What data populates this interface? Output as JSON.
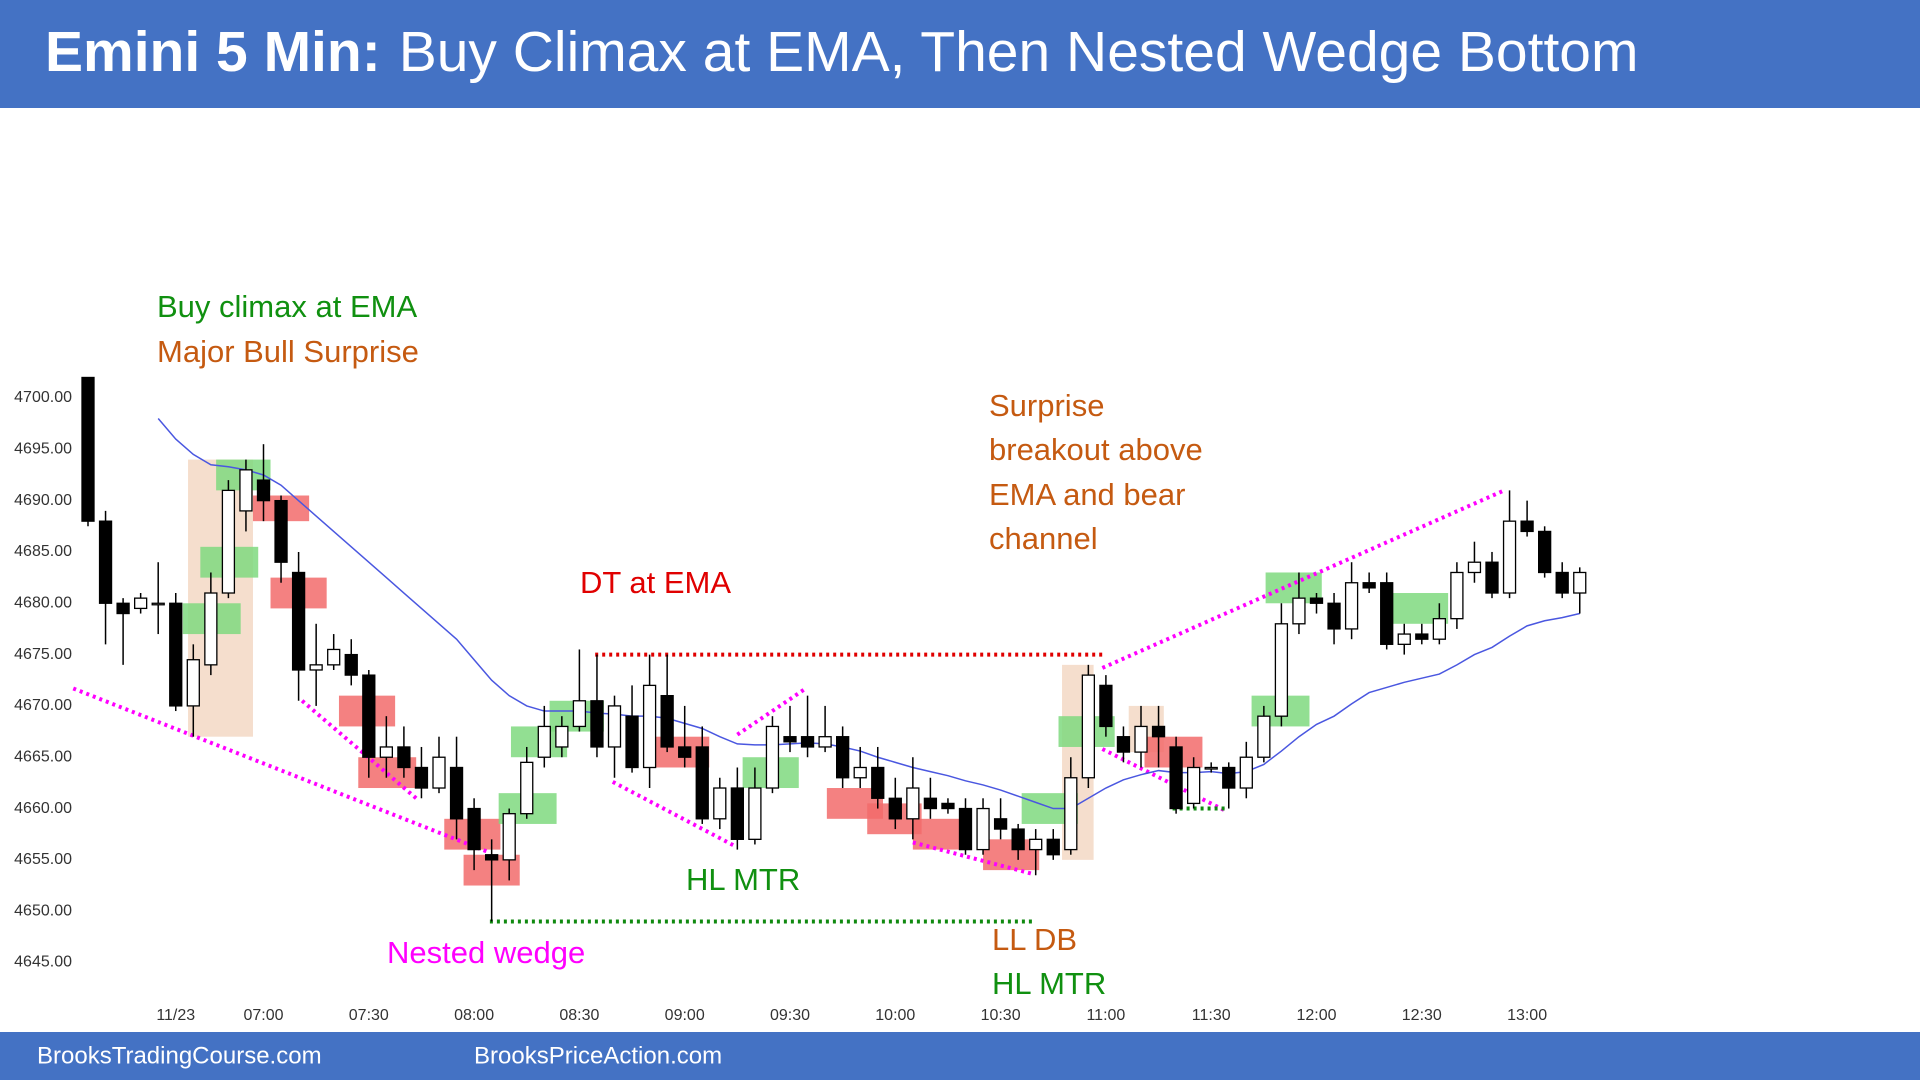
{
  "header": {
    "title_lead": "Emini 5 Min:",
    "title": "Buy Climax at EMA, Then Nested Wedge Bottom"
  },
  "footer": [
    "BrooksTradingCourse.com",
    "BrooksPriceAction.com"
  ],
  "chart_data": {
    "type": "candlestick",
    "categories": [
      null,
      null,
      null,
      null,
      null,
      "11/23",
      null,
      null,
      null,
      null,
      "07:00",
      null,
      null,
      null,
      null,
      null,
      "07:30",
      null,
      null,
      null,
      null,
      null,
      "08:00",
      null,
      null,
      null,
      null,
      null,
      "08:30",
      null,
      null,
      null,
      null,
      null,
      "09:00",
      null,
      null,
      null,
      null,
      null,
      "09:30",
      null,
      null,
      null,
      null,
      null,
      "10:00",
      null,
      null,
      null,
      null,
      null,
      "10:30",
      null,
      null,
      null,
      null,
      null,
      "11:00",
      null,
      null,
      null,
      null,
      null,
      "11:30",
      null,
      null,
      null,
      null,
      null,
      "12:00",
      null,
      null,
      null,
      null,
      null,
      "12:30",
      null,
      null,
      null,
      null,
      null,
      "13:00",
      null,
      null,
      null
    ],
    "open": [
      4702,
      4688,
      4680,
      4679.5,
      4680,
      4680,
      4670,
      4674,
      4681,
      4689,
      4692,
      4690,
      4683,
      4673.5,
      4674,
      4675,
      4673,
      4665,
      4666,
      4664,
      4662,
      4664,
      4660,
      4655.5,
      4655,
      4659.5,
      4665,
      4666,
      4668,
      4670.5,
      4666,
      4669,
      4664,
      4671,
      4666,
      4666,
      4659,
      4662,
      4657,
      4662,
      4667,
      4667,
      4666,
      4667,
      4663,
      4664,
      4661,
      4659,
      4661,
      4660.5,
      4660,
      4656,
      4659,
      4658,
      4656,
      4657,
      4656,
      4663,
      4672,
      4667,
      4665.5,
      4668,
      4666,
      4660.5,
      4664,
      4664,
      4662,
      4665,
      4669,
      4678,
      4680.5,
      4680,
      4677.5,
      4682,
      4682,
      4676,
      4677,
      4676.5,
      4678.5,
      4683,
      4684,
      4681,
      4688,
      4687,
      4683,
      4681
    ],
    "high": [
      4702,
      4689,
      4680.5,
      4681,
      4684,
      4681,
      4676,
      4683,
      4692,
      4694,
      4695.5,
      4690.5,
      4685,
      4678,
      4677,
      4676.5,
      4673.5,
      4669,
      4668,
      4666,
      4667,
      4667,
      4661,
      4657,
      4660,
      4666,
      4670,
      4669,
      4675.5,
      4675,
      4671,
      4672,
      4675,
      4675,
      4670,
      4668,
      4663,
      4664,
      4664,
      4669,
      4670,
      4671,
      4670,
      4668,
      4666,
      4666,
      4663,
      4665,
      4663,
      4661,
      4661,
      4661,
      4661,
      4658.5,
      4658,
      4658,
      4665,
      4674,
      4673,
      4668,
      4670,
      4670,
      4667,
      4665,
      4664.5,
      4664.5,
      4666.5,
      4670,
      4680,
      4683,
      4681,
      4681,
      4684,
      4683,
      4683,
      4678,
      4678,
      4680,
      4684,
      4686,
      4685,
      4691,
      4690,
      4687.5,
      4684,
      4683.5
    ],
    "low": [
      4687.5,
      4676,
      4674,
      4679,
      4677,
      4669.5,
      4667,
      4673,
      4680.5,
      4687,
      4688,
      4682,
      4670.5,
      4670,
      4673.5,
      4672,
      4663,
      4663,
      4663,
      4661,
      4661.5,
      4657,
      4654,
      4649,
      4653,
      4659,
      4664,
      4665,
      4667.5,
      4665,
      4663,
      4663.5,
      4662,
      4665.5,
      4664,
      4658.5,
      4658,
      4656,
      4656.5,
      4661.5,
      4665.5,
      4665,
      4665.5,
      4662,
      4662,
      4660,
      4658,
      4657,
      4659,
      4659.5,
      4655.5,
      4655.5,
      4657,
      4655,
      4653.5,
      4655,
      4655.5,
      4662,
      4667,
      4664.5,
      4664,
      4664,
      4659.5,
      4660,
      4663.5,
      4660,
      4661,
      4664.5,
      4668,
      4677,
      4679,
      4676,
      4676.5,
      4681,
      4675.5,
      4675,
      4676,
      4676,
      4677.5,
      4682,
      4680.5,
      4680.5,
      4686.5,
      4682.5,
      4680.5,
      4679
    ],
    "close": [
      4688,
      4680,
      4679,
      4680.5,
      4680,
      4670,
      4674.5,
      4681,
      4691,
      4693,
      4690,
      4684,
      4673.5,
      4674,
      4675.5,
      4673,
      4665,
      4666,
      4664,
      4662,
      4665,
      4659,
      4656,
      4655,
      4659.5,
      4664.5,
      4668,
      4668,
      4670.5,
      4666,
      4670,
      4664,
      4672,
      4666,
      4665,
      4659,
      4662,
      4657,
      4662,
      4668,
      4666.5,
      4666,
      4667,
      4663,
      4664,
      4661,
      4659,
      4662,
      4660,
      4660,
      4656,
      4660,
      4658,
      4656,
      4657,
      4655.5,
      4663,
      4673,
      4668,
      4665.5,
      4668,
      4667,
      4660,
      4664,
      4664,
      4662,
      4665,
      4669,
      4678,
      4680.5,
      4680,
      4677.5,
      4682,
      4681.5,
      4676,
      4677,
      4676.5,
      4678.5,
      4683,
      4684,
      4681,
      4688,
      4687,
      4683,
      4681,
      4683
    ],
    "up_color": "#ffffff",
    "down_color": "#000000",
    "moving_average": {
      "color": "#4a57e0",
      "values": [
        null,
        null,
        null,
        null,
        4698,
        4696,
        4694.5,
        4693.5,
        4693.3,
        4693,
        4692.5,
        4691.5,
        4690,
        4688.5,
        4687,
        4685.5,
        4684,
        4682.5,
        4681,
        4679.5,
        4678,
        4676.5,
        4674.5,
        4672.5,
        4671,
        4670,
        4669.5,
        4669.5,
        4669.5,
        4669.3,
        4669.2,
        4669,
        4669,
        4668.8,
        4668.3,
        4667.8,
        4667,
        4666.3,
        4666.2,
        4666.2,
        4666.3,
        4666.4,
        4666.3,
        4666,
        4665.6,
        4665,
        4664.5,
        4664,
        4663.6,
        4663.2,
        4662.7,
        4662.3,
        4661.8,
        4661.2,
        4660.6,
        4660,
        4660,
        4661,
        4662,
        4662.8,
        4663.3,
        4663.7,
        4663.5,
        4663.5,
        4663.6,
        4663.4,
        4663.6,
        4664.3,
        4665.6,
        4667,
        4668.2,
        4669,
        4670.2,
        4671.3,
        4671.8,
        4672.3,
        4672.7,
        4673.1,
        4674,
        4675,
        4675.7,
        4676.8,
        4677.8,
        4678.3,
        4678.6,
        4679
      ]
    },
    "ylim": [
      4645,
      4700
    ],
    "yticks": [
      {
        "value": 4645,
        "label": "4645.00"
      },
      {
        "value": 4650,
        "label": "4650.00"
      },
      {
        "value": 4655,
        "label": "4655.00"
      },
      {
        "value": 4660,
        "label": "4660.00"
      },
      {
        "value": 4665,
        "label": "4665.00"
      },
      {
        "value": 4670,
        "label": "4670.00"
      },
      {
        "value": 4675,
        "label": "4675.00"
      },
      {
        "value": 4680,
        "label": "4680.00"
      },
      {
        "value": 4685,
        "label": "4685.00"
      },
      {
        "value": 4690,
        "label": "4690.00"
      },
      {
        "value": 4695,
        "label": "4695.00"
      },
      {
        "value": 4700,
        "label": "4700.00"
      }
    ],
    "grid": false,
    "zones": [
      {
        "x": [
          5.7,
          9.4
        ],
        "y": [
          4667,
          4694
        ],
        "color": "#f3d8c4"
      },
      {
        "x": [
          55.5,
          57.3
        ],
        "y": [
          4655,
          4674
        ],
        "color": "#f3d8c4"
      },
      {
        "x": [
          59.3,
          61.3
        ],
        "y": [
          4665.5,
          4670
        ],
        "color": "#f3d8c4"
      },
      {
        "x": [
          5.4,
          8.7
        ],
        "y": [
          4677,
          4680
        ],
        "color": "#7fd97f"
      },
      {
        "x": [
          6.4,
          9.7
        ],
        "y": [
          4682.5,
          4685.5
        ],
        "color": "#7fd97f"
      },
      {
        "x": [
          7.3,
          10.4
        ],
        "y": [
          4691,
          4694
        ],
        "color": "#7fd97f"
      },
      {
        "x": [
          9.4,
          12.6
        ],
        "y": [
          4688,
          4690.5
        ],
        "color": "#f26b6b"
      },
      {
        "x": [
          10.4,
          13.6
        ],
        "y": [
          4679.5,
          4682.5
        ],
        "color": "#f26b6b"
      },
      {
        "x": [
          14.3,
          17.5
        ],
        "y": [
          4668,
          4671
        ],
        "color": "#f26b6b"
      },
      {
        "x": [
          15.4,
          18.7
        ],
        "y": [
          4662,
          4665
        ],
        "color": "#f26b6b"
      },
      {
        "x": [
          20.3,
          23.5
        ],
        "y": [
          4656,
          4659
        ],
        "color": "#f26b6b"
      },
      {
        "x": [
          21.4,
          24.6
        ],
        "y": [
          4652.5,
          4655.5
        ],
        "color": "#f26b6b"
      },
      {
        "x": [
          23.4,
          26.7
        ],
        "y": [
          4658.5,
          4661.5
        ],
        "color": "#7fd97f"
      },
      {
        "x": [
          24.1,
          27.3
        ],
        "y": [
          4665,
          4668
        ],
        "color": "#7fd97f"
      },
      {
        "x": [
          26.3,
          29.4
        ],
        "y": [
          4667.5,
          4670.5
        ],
        "color": "#7fd97f"
      },
      {
        "x": [
          32.2,
          35.4
        ],
        "y": [
          4664,
          4667
        ],
        "color": "#f26b6b"
      },
      {
        "x": [
          37.3,
          40.5
        ],
        "y": [
          4662,
          4665
        ],
        "color": "#7fd97f"
      },
      {
        "x": [
          42.1,
          45.3
        ],
        "y": [
          4659,
          4662
        ],
        "color": "#f26b6b"
      },
      {
        "x": [
          44.4,
          47.5
        ],
        "y": [
          4657.5,
          4660.5
        ],
        "color": "#f26b6b"
      },
      {
        "x": [
          47,
          50.2
        ],
        "y": [
          4656,
          4659
        ],
        "color": "#f26b6b"
      },
      {
        "x": [
          51,
          54.2
        ],
        "y": [
          4654,
          4657
        ],
        "color": "#f26b6b"
      },
      {
        "x": [
          53.2,
          56.4
        ],
        "y": [
          4658.5,
          4661.5
        ],
        "color": "#7fd97f"
      },
      {
        "x": [
          55.3,
          58.5
        ],
        "y": [
          4666,
          4669
        ],
        "color": "#7fd97f"
      },
      {
        "x": [
          60.2,
          63.5
        ],
        "y": [
          4664,
          4667
        ],
        "color": "#f26b6b"
      },
      {
        "x": [
          66.3,
          69.6
        ],
        "y": [
          4668,
          4671
        ],
        "color": "#7fd97f"
      },
      {
        "x": [
          67.1,
          70.3
        ],
        "y": [
          4680,
          4683
        ],
        "color": "#7fd97f"
      },
      {
        "x": [
          74.2,
          77.5
        ],
        "y": [
          4678,
          4681
        ],
        "color": "#7fd97f"
      }
    ],
    "trend_lines": [
      {
        "x": [
          -0.84,
          22.9
        ],
        "y": [
          4671.7,
          4655.7
        ],
        "color": "#ff00ff"
      },
      {
        "x": [
          12.2,
          18.7
        ],
        "y": [
          4670.5,
          4661
        ],
        "color": "#ff00ff"
      },
      {
        "x": [
          29.9,
          36.8
        ],
        "y": [
          4662.6,
          4656.4
        ],
        "color": "#ff00ff"
      },
      {
        "x": [
          37,
          40.9
        ],
        "y": [
          4667.2,
          4671.7
        ],
        "color": "#ff00ff"
      },
      {
        "x": [
          47,
          53.9
        ],
        "y": [
          4656.7,
          4653.6
        ],
        "color": "#ff00ff"
      },
      {
        "x": [
          57.8,
          64.8
        ],
        "y": [
          4665.8,
          4659.8
        ],
        "color": "#ff00ff"
      },
      {
        "x": [
          57.8,
          80.7
        ],
        "y": [
          4673.7,
          4691
        ],
        "color": "#ff00ff"
      },
      {
        "x": [
          28.9,
          57.8
        ],
        "y": [
          4675,
          4675
        ],
        "color": "#e00000"
      },
      {
        "x": [
          22.9,
          53.9
        ],
        "y": [
          4649,
          4649
        ],
        "color": "#108a10"
      },
      {
        "x": [
          61.8,
          64.8
        ],
        "y": [
          4660,
          4660
        ],
        "color": "#108a10"
      }
    ],
    "annotations": [
      {
        "text": "Buy climax at EMA",
        "color": "#109010"
      },
      {
        "text": "Major Bull Surprise",
        "color": "#c55a11"
      },
      {
        "text": "Surprise",
        "color": "#c55a11"
      },
      {
        "text": "breakout above",
        "color": "#c55a11"
      },
      {
        "text": "EMA and bear",
        "color": "#c55a11"
      },
      {
        "text": "channel",
        "color": "#c55a11"
      },
      {
        "text": "DT at EMA",
        "color": "#e00000"
      },
      {
        "text": "HL MTR",
        "color": "#109010"
      },
      {
        "text": "Nested wedge",
        "color": "#ff00ff"
      },
      {
        "text": "LL DB",
        "color": "#c55a11"
      },
      {
        "text": "HL MTR",
        "color": "#109010"
      }
    ]
  }
}
